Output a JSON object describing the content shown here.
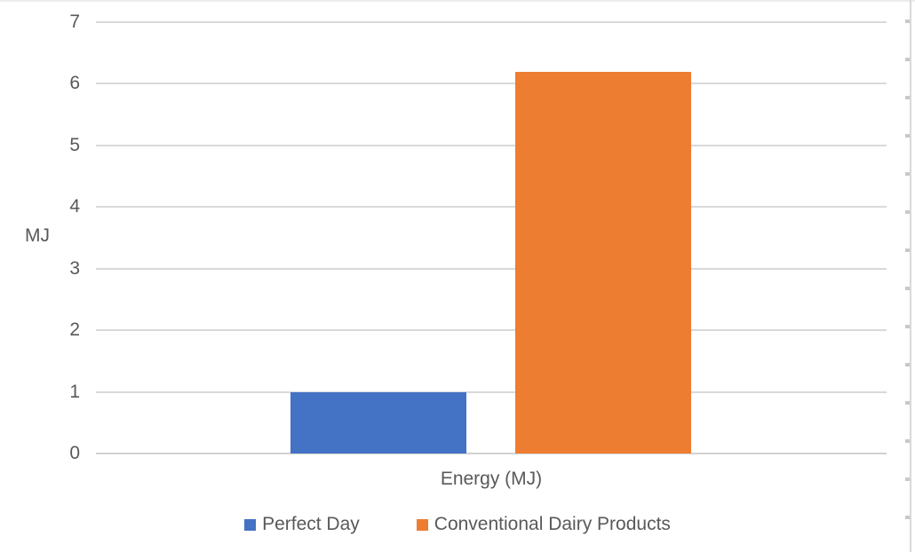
{
  "chart_data": {
    "type": "bar",
    "title": "",
    "categories": [
      "Energy (MJ)"
    ],
    "series": [
      {
        "name": "Perfect Day",
        "values": [
          1.0
        ],
        "color": "#4472C4"
      },
      {
        "name": "Conventional Dairy Products",
        "values": [
          6.2
        ],
        "color": "#ED7D31"
      }
    ],
    "xlabel": "Energy (MJ)",
    "ylabel": "MJ",
    "ylim": [
      0,
      7
    ],
    "yticks": [
      0,
      1,
      2,
      3,
      4,
      5,
      6,
      7
    ],
    "grid": true,
    "legend_position": "bottom"
  },
  "colors": {
    "gridline": "#d9d9d9",
    "axis_text": "#595959",
    "frame_edge": "#d9d9d9"
  }
}
